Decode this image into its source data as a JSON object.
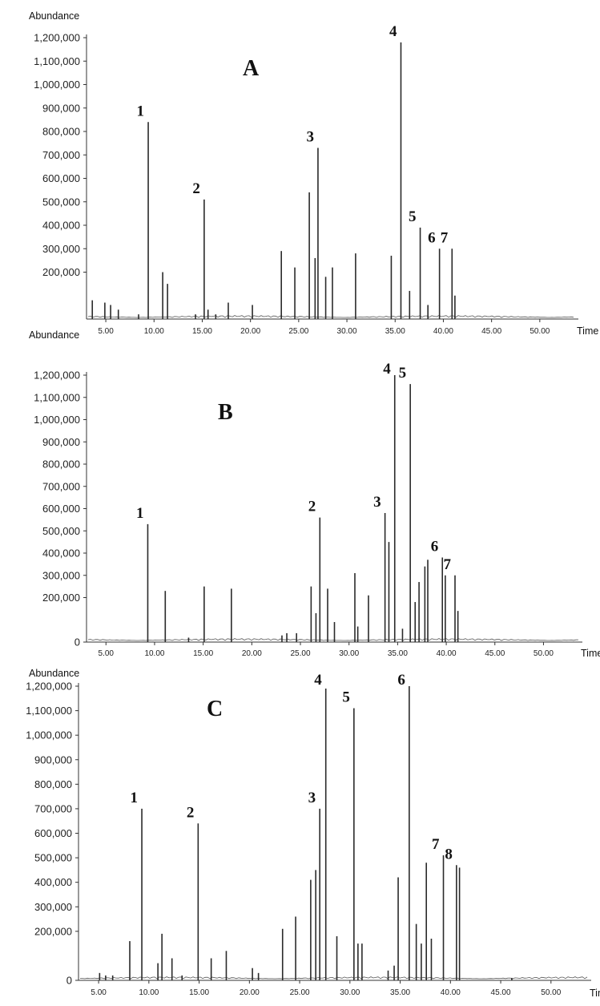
{
  "chart_data": [
    {
      "type": "line",
      "panel_label": "A",
      "ylabel": "Abundance",
      "xlabel": "Time",
      "ylim": [
        0,
        1200000
      ],
      "xlim": [
        3,
        54
      ],
      "y_ticks": [
        {
          "value": 200000,
          "label": "200,000"
        },
        {
          "value": 300000,
          "label": "300,000"
        },
        {
          "value": 400000,
          "label": "400,000"
        },
        {
          "value": 500000,
          "label": "500,000"
        },
        {
          "value": 600000,
          "label": "600,000"
        },
        {
          "value": 700000,
          "label": "700,000"
        },
        {
          "value": 800000,
          "label": "800,000"
        },
        {
          "value": 900000,
          "label": "900,000"
        },
        {
          "value": 1000000,
          "label": "1,000,000"
        },
        {
          "value": 1100000,
          "label": "1,100,000"
        },
        {
          "value": 1200000,
          "label": "1,200,000"
        }
      ],
      "x_ticks": [
        {
          "value": 5,
          "label": "5.00"
        },
        {
          "value": 10,
          "label": "10.00"
        },
        {
          "value": 15,
          "label": "15.00"
        },
        {
          "value": 20,
          "label": "20.00"
        },
        {
          "value": 25,
          "label": "25.00"
        },
        {
          "value": 30,
          "label": "30.00"
        },
        {
          "value": 35,
          "label": "35.00"
        },
        {
          "value": 40,
          "label": "40.00"
        },
        {
          "value": 45,
          "label": "45.00"
        },
        {
          "value": 50,
          "label": "50.00"
        }
      ],
      "peaks": [
        {
          "x": 3.6,
          "y": 80000
        },
        {
          "x": 4.9,
          "y": 70000
        },
        {
          "x": 5.5,
          "y": 60000
        },
        {
          "x": 6.3,
          "y": 40000
        },
        {
          "x": 8.4,
          "y": 20000
        },
        {
          "x": 9.4,
          "y": 840000,
          "label": "1"
        },
        {
          "x": 10.9,
          "y": 200000
        },
        {
          "x": 11.4,
          "y": 150000
        },
        {
          "x": 14.3,
          "y": 20000
        },
        {
          "x": 15.2,
          "y": 510000,
          "label": "2"
        },
        {
          "x": 15.6,
          "y": 40000
        },
        {
          "x": 16.4,
          "y": 20000
        },
        {
          "x": 17.7,
          "y": 70000
        },
        {
          "x": 20.2,
          "y": 60000
        },
        {
          "x": 23.2,
          "y": 290000
        },
        {
          "x": 24.6,
          "y": 220000
        },
        {
          "x": 26.1,
          "y": 540000
        },
        {
          "x": 26.7,
          "y": 260000
        },
        {
          "x": 27.0,
          "y": 730000,
          "label": "3"
        },
        {
          "x": 27.8,
          "y": 180000
        },
        {
          "x": 28.5,
          "y": 220000
        },
        {
          "x": 30.9,
          "y": 280000
        },
        {
          "x": 34.6,
          "y": 270000
        },
        {
          "x": 35.6,
          "y": 1180000,
          "label": "4"
        },
        {
          "x": 36.5,
          "y": 120000
        },
        {
          "x": 37.6,
          "y": 390000,
          "label": "5"
        },
        {
          "x": 38.4,
          "y": 60000
        },
        {
          "x": 39.6,
          "y": 300000,
          "label": "6"
        },
        {
          "x": 40.9,
          "y": 300000,
          "label": "7"
        },
        {
          "x": 41.2,
          "y": 100000
        }
      ]
    },
    {
      "type": "line",
      "panel_label": "B",
      "ylabel": "Abundance",
      "xlabel": "Time",
      "ylim": [
        0,
        1200000
      ],
      "xlim": [
        3,
        54
      ],
      "y_ticks": [
        {
          "value": 0,
          "label": "0"
        },
        {
          "value": 200000,
          "label": "200,000"
        },
        {
          "value": 300000,
          "label": "300,000"
        },
        {
          "value": 400000,
          "label": "400,000"
        },
        {
          "value": 500000,
          "label": "500,000"
        },
        {
          "value": 600000,
          "label": "600,000"
        },
        {
          "value": 700000,
          "label": "700,000"
        },
        {
          "value": 800000,
          "label": "800,000"
        },
        {
          "value": 900000,
          "label": "900,000"
        },
        {
          "value": 1000000,
          "label": "1,000,000"
        },
        {
          "value": 1100000,
          "label": "1,100,000"
        },
        {
          "value": 1200000,
          "label": "1,200,000"
        }
      ],
      "x_ticks": [
        {
          "value": 5,
          "label": "5.00"
        },
        {
          "value": 10,
          "label": "10.00"
        },
        {
          "value": 15,
          "label": "15.00"
        },
        {
          "value": 20,
          "label": "20.00"
        },
        {
          "value": 25,
          "label": "25.00"
        },
        {
          "value": 30,
          "label": "30.00"
        },
        {
          "value": 35,
          "label": "35.00"
        },
        {
          "value": 40,
          "label": "40.00"
        },
        {
          "value": 45,
          "label": "45.00"
        },
        {
          "value": 50,
          "label": "50.00"
        }
      ],
      "peaks": [
        {
          "x": 9.3,
          "y": 530000,
          "label": "1"
        },
        {
          "x": 11.1,
          "y": 230000
        },
        {
          "x": 13.5,
          "y": 20000
        },
        {
          "x": 15.1,
          "y": 250000
        },
        {
          "x": 17.9,
          "y": 240000
        },
        {
          "x": 23.1,
          "y": 30000
        },
        {
          "x": 23.6,
          "y": 40000
        },
        {
          "x": 24.6,
          "y": 40000
        },
        {
          "x": 26.1,
          "y": 250000
        },
        {
          "x": 26.6,
          "y": 130000
        },
        {
          "x": 27.0,
          "y": 560000,
          "label": "2"
        },
        {
          "x": 27.8,
          "y": 240000
        },
        {
          "x": 28.5,
          "y": 90000
        },
        {
          "x": 30.6,
          "y": 310000
        },
        {
          "x": 30.9,
          "y": 70000
        },
        {
          "x": 32.0,
          "y": 210000
        },
        {
          "x": 33.7,
          "y": 580000,
          "label": "3"
        },
        {
          "x": 34.1,
          "y": 450000
        },
        {
          "x": 34.7,
          "y": 1200000,
          "label": "4"
        },
        {
          "x": 35.5,
          "y": 60000
        },
        {
          "x": 36.3,
          "y": 1160000,
          "label": "5"
        },
        {
          "x": 36.8,
          "y": 180000
        },
        {
          "x": 37.2,
          "y": 270000
        },
        {
          "x": 37.8,
          "y": 340000
        },
        {
          "x": 38.1,
          "y": 370000
        },
        {
          "x": 39.6,
          "y": 380000,
          "label": "6"
        },
        {
          "x": 39.9,
          "y": 300000
        },
        {
          "x": 40.9,
          "y": 300000,
          "label": "7"
        },
        {
          "x": 41.2,
          "y": 140000
        }
      ]
    },
    {
      "type": "line",
      "panel_label": "C",
      "ylabel": "Abundance",
      "xlabel": "Time",
      "ylim": [
        0,
        1200000
      ],
      "xlim": [
        3,
        54
      ],
      "y_ticks": [
        {
          "value": 0,
          "label": "0"
        },
        {
          "value": 200000,
          "label": "200,000"
        },
        {
          "value": 300000,
          "label": "300,000"
        },
        {
          "value": 400000,
          "label": "400,000"
        },
        {
          "value": 500000,
          "label": "500,000"
        },
        {
          "value": 600000,
          "label": "600,000"
        },
        {
          "value": 700000,
          "label": "700,000"
        },
        {
          "value": 800000,
          "label": "800,000"
        },
        {
          "value": 900000,
          "label": "900,000"
        },
        {
          "value": 1000000,
          "label": "1,000,000"
        },
        {
          "value": 1100000,
          "label": "1,100,000"
        },
        {
          "value": 1200000,
          "label": "1,200,000"
        }
      ],
      "x_ticks": [
        {
          "value": 5,
          "label": "5.00"
        },
        {
          "value": 10,
          "label": "10.00"
        },
        {
          "value": 15,
          "label": "15.00"
        },
        {
          "value": 20,
          "label": "20.00"
        },
        {
          "value": 25,
          "label": "25.00"
        },
        {
          "value": 30,
          "label": "30.00"
        },
        {
          "value": 35,
          "label": "35.00"
        },
        {
          "value": 40,
          "label": "40.00"
        },
        {
          "value": 45,
          "label": "45.00"
        },
        {
          "value": 50,
          "label": "50.00"
        }
      ],
      "peaks": [
        {
          "x": 5.1,
          "y": 30000
        },
        {
          "x": 5.7,
          "y": 20000
        },
        {
          "x": 6.4,
          "y": 20000
        },
        {
          "x": 8.1,
          "y": 160000
        },
        {
          "x": 9.3,
          "y": 700000,
          "label": "1"
        },
        {
          "x": 10.9,
          "y": 70000
        },
        {
          "x": 11.3,
          "y": 190000
        },
        {
          "x": 12.3,
          "y": 90000
        },
        {
          "x": 13.3,
          "y": 20000
        },
        {
          "x": 14.9,
          "y": 640000,
          "label": "2"
        },
        {
          "x": 16.2,
          "y": 90000
        },
        {
          "x": 17.7,
          "y": 120000
        },
        {
          "x": 20.3,
          "y": 50000
        },
        {
          "x": 20.9,
          "y": 30000
        },
        {
          "x": 23.3,
          "y": 210000
        },
        {
          "x": 24.6,
          "y": 260000
        },
        {
          "x": 26.1,
          "y": 410000
        },
        {
          "x": 26.6,
          "y": 450000
        },
        {
          "x": 27.0,
          "y": 700000,
          "label": "3"
        },
        {
          "x": 27.6,
          "y": 1190000,
          "label": "4"
        },
        {
          "x": 28.7,
          "y": 180000
        },
        {
          "x": 30.4,
          "y": 1110000,
          "label": "5"
        },
        {
          "x": 30.8,
          "y": 150000
        },
        {
          "x": 31.2,
          "y": 150000
        },
        {
          "x": 33.8,
          "y": 40000
        },
        {
          "x": 34.4,
          "y": 60000
        },
        {
          "x": 34.8,
          "y": 420000
        },
        {
          "x": 35.9,
          "y": 1200000,
          "label": "6"
        },
        {
          "x": 36.6,
          "y": 230000
        },
        {
          "x": 37.1,
          "y": 150000
        },
        {
          "x": 37.6,
          "y": 480000
        },
        {
          "x": 38.1,
          "y": 170000
        },
        {
          "x": 39.3,
          "y": 510000,
          "label": "7"
        },
        {
          "x": 40.6,
          "y": 470000,
          "label": "8"
        },
        {
          "x": 40.9,
          "y": 460000
        },
        {
          "x": 46.1,
          "y": 10000
        }
      ]
    }
  ]
}
